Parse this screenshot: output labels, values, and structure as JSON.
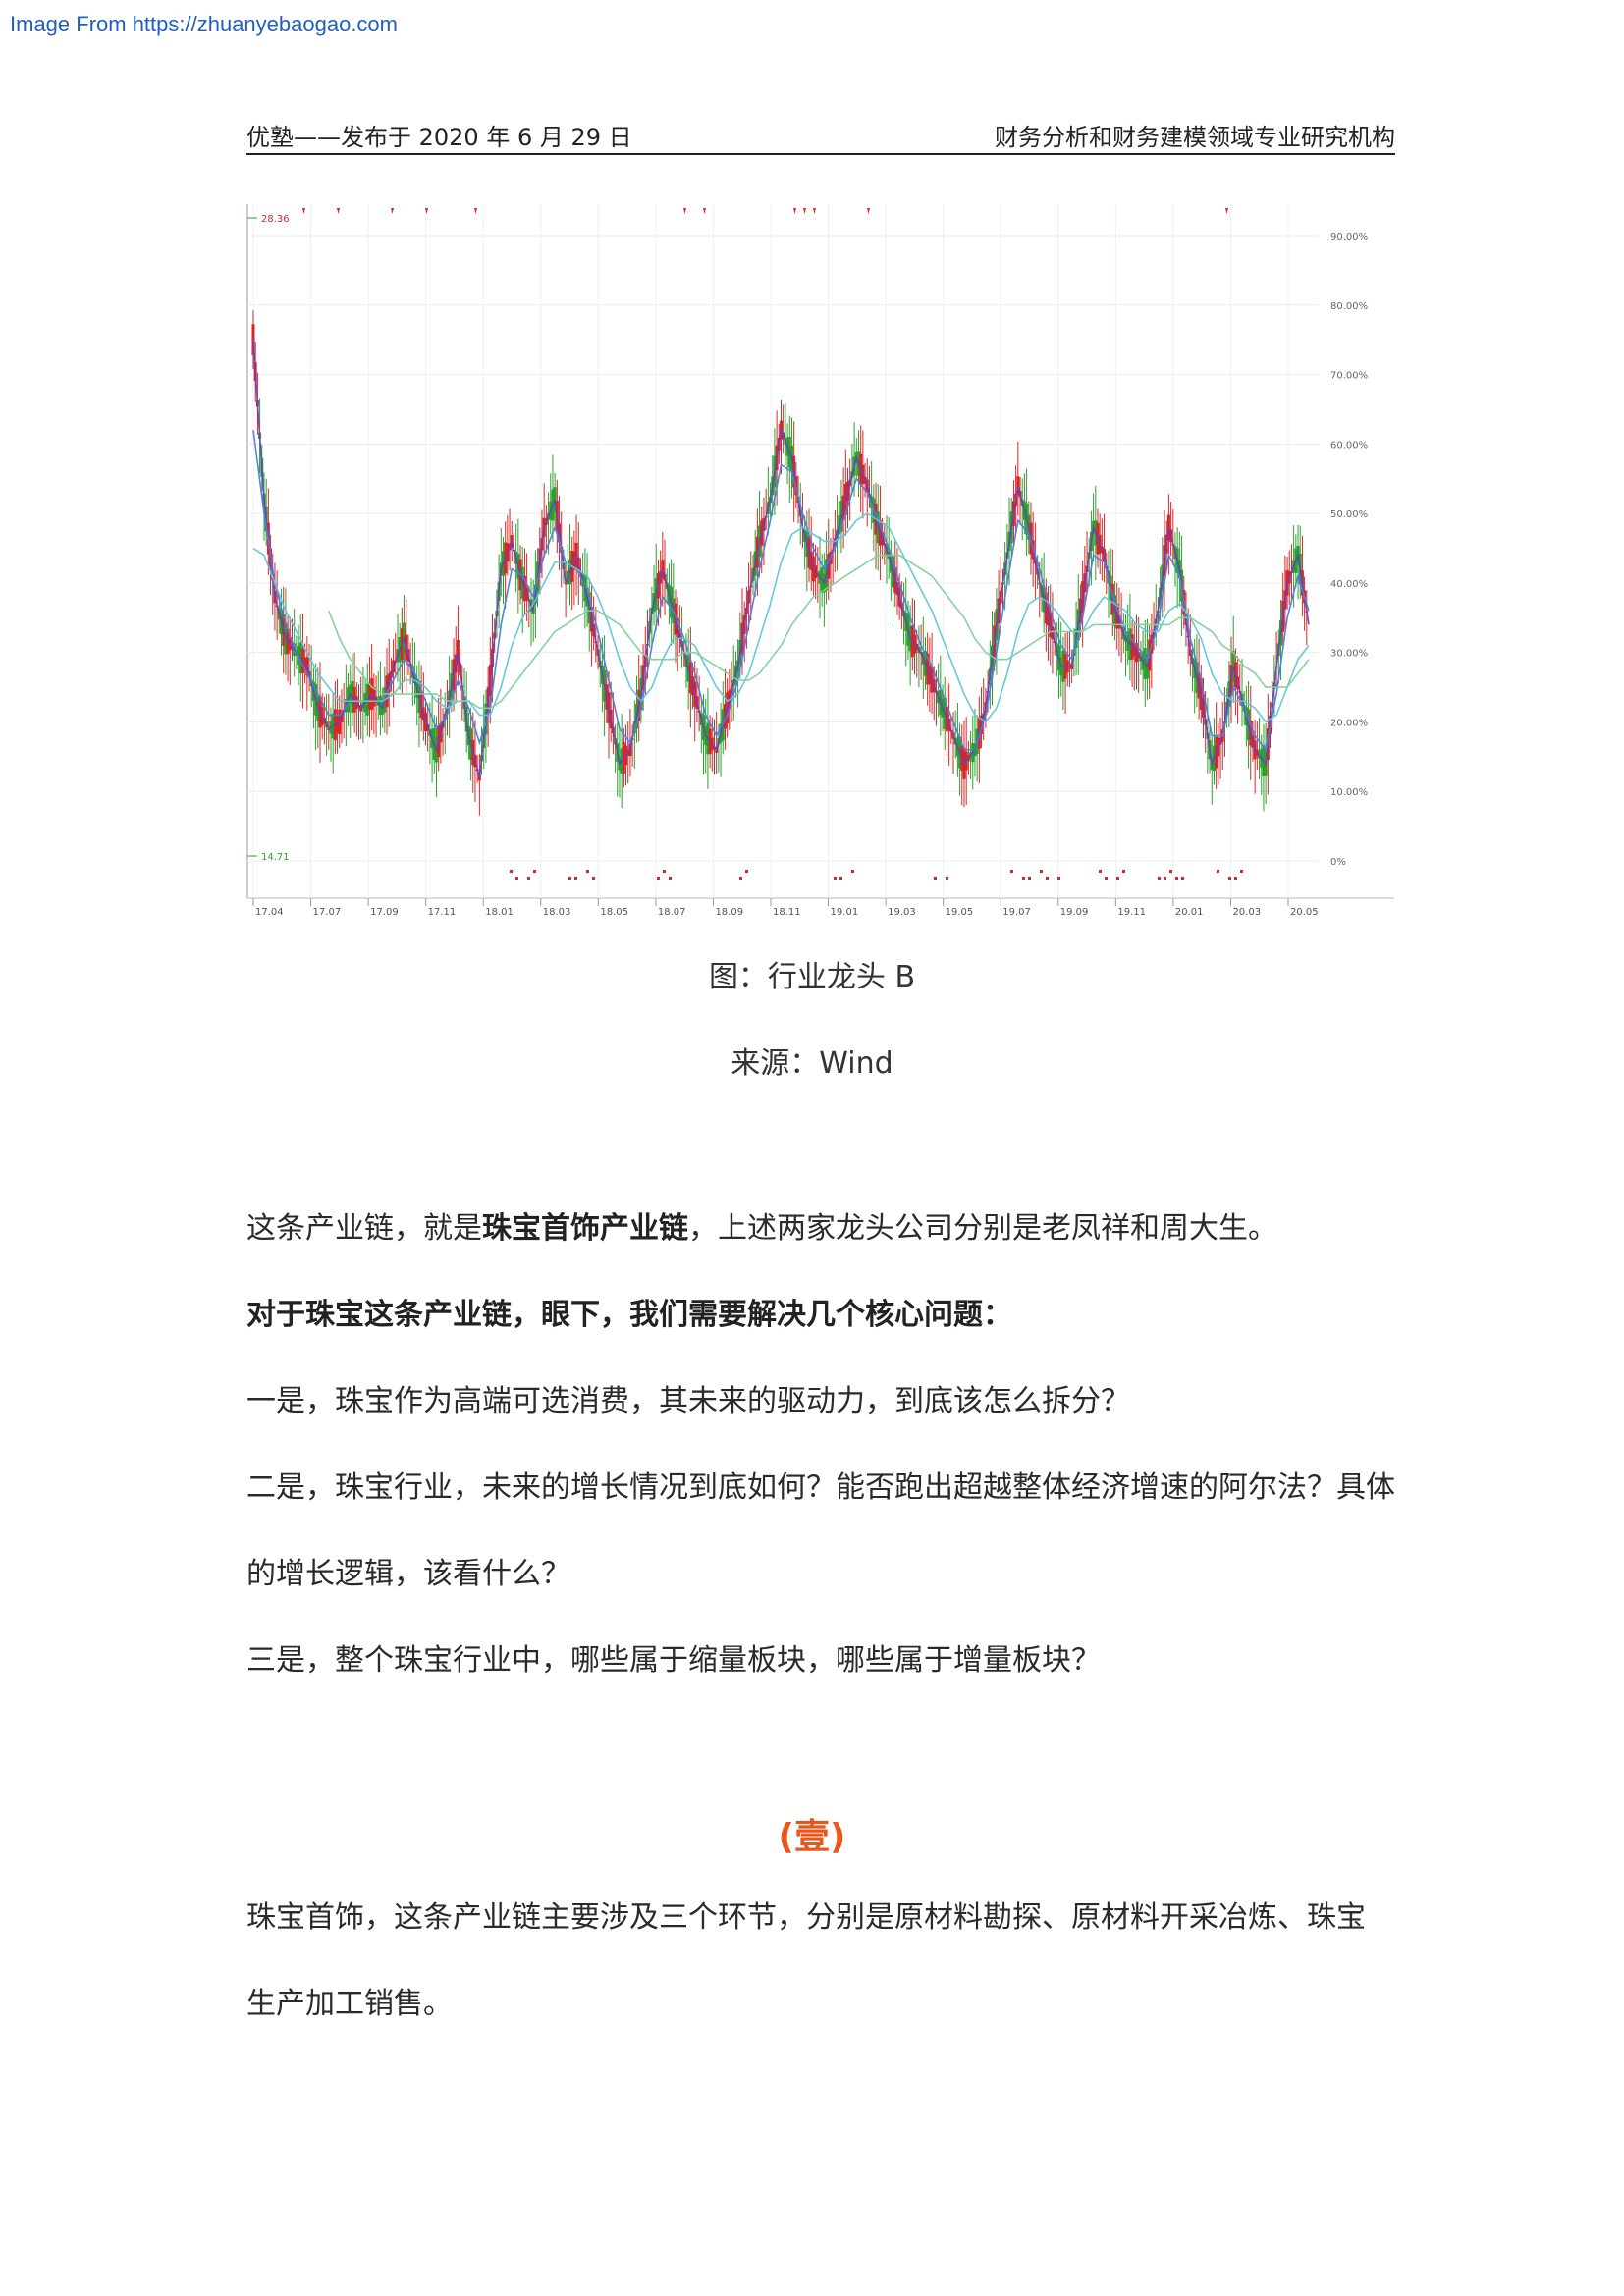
{
  "watermark": "Image From https://zhuanyebaogao.com",
  "header": {
    "left": "优塾——发布于 2020 年 6 月 29 日",
    "right": "财务分析和财务建模领域专业研究机构"
  },
  "chart_data": {
    "type": "line",
    "title": "",
    "xlabel": "",
    "ylabel": "",
    "x_ticks": [
      "17.04",
      "17.07",
      "17.09",
      "17.11",
      "18.01",
      "18.03",
      "18.05",
      "18.07",
      "18.09",
      "18.11",
      "19.01",
      "19.03",
      "19.05",
      "19.07",
      "19.09",
      "19.11",
      "20.01",
      "20.03",
      "20.05"
    ],
    "y_ticks": [
      "0%",
      "10.00%",
      "20.00%",
      "30.00%",
      "40.00%",
      "50.00%",
      "60.00%",
      "70.00%",
      "80.00%",
      "90.00%"
    ],
    "ylim": [
      0,
      95
    ],
    "annotations": {
      "max_label": "28.36",
      "min_label": "14.71"
    },
    "grid": true,
    "series": [
      {
        "values": [
          75,
          52,
          38,
          32,
          30,
          28,
          22,
          19,
          20,
          24,
          22,
          24,
          22,
          28,
          32,
          26,
          20,
          16,
          22,
          30,
          18,
          12,
          26,
          42,
          46,
          40,
          36,
          48,
          52,
          40,
          44,
          38,
          30,
          22,
          14,
          16,
          24,
          36,
          42,
          36,
          30,
          24,
          18,
          16,
          22,
          28,
          38,
          46,
          52,
          62,
          58,
          48,
          42,
          40,
          46,
          52,
          58,
          54,
          48,
          44,
          38,
          32,
          30,
          26,
          22,
          18,
          14,
          16,
          22,
          34,
          44,
          54,
          48,
          40,
          34,
          28,
          28,
          38,
          48,
          44,
          36,
          32,
          30,
          28,
          36,
          48,
          42,
          30,
          24,
          14,
          18,
          28,
          22,
          16,
          14,
          28,
          40,
          44,
          34
        ]
      },
      {
        "values": [
          62,
          50,
          40,
          34,
          30,
          27,
          24,
          21,
          21,
          23,
          23,
          23,
          23,
          26,
          29,
          27,
          23,
          19,
          21,
          26,
          22,
          17,
          22,
          34,
          42,
          41,
          38,
          44,
          48,
          43,
          42,
          39,
          33,
          26,
          19,
          17,
          22,
          31,
          38,
          36,
          32,
          27,
          21,
          18,
          21,
          26,
          34,
          42,
          49,
          57,
          56,
          50,
          45,
          42,
          45,
          50,
          55,
          53,
          49,
          45,
          40,
          35,
          31,
          28,
          24,
          20,
          16,
          16,
          21,
          30,
          40,
          49,
          47,
          42,
          36,
          31,
          29,
          35,
          44,
          43,
          37,
          33,
          31,
          29,
          34,
          44,
          41,
          32,
          26,
          18,
          18,
          25,
          22,
          18,
          16,
          24,
          35,
          41,
          36
        ]
      },
      {
        "values": [
          45,
          44,
          40,
          36,
          33,
          30,
          27,
          25,
          23,
          23,
          23,
          23,
          23,
          24,
          26,
          26,
          25,
          23,
          22,
          23,
          23,
          21,
          21,
          25,
          31,
          35,
          37,
          40,
          43,
          43,
          42,
          41,
          38,
          34,
          29,
          25,
          23,
          25,
          29,
          32,
          32,
          31,
          28,
          25,
          23,
          24,
          27,
          32,
          37,
          43,
          47,
          48,
          47,
          46,
          46,
          47,
          49,
          50,
          49,
          48,
          45,
          42,
          39,
          36,
          32,
          28,
          24,
          21,
          20,
          22,
          27,
          33,
          37,
          38,
          37,
          35,
          33,
          33,
          36,
          38,
          37,
          36,
          34,
          33,
          33,
          36,
          37,
          35,
          32,
          27,
          24,
          23,
          23,
          22,
          20,
          21,
          25,
          29,
          31
        ]
      },
      {
        "values": [
          null,
          null,
          null,
          null,
          null,
          null,
          null,
          36,
          32,
          29,
          27,
          25,
          24,
          24,
          24,
          24,
          24,
          24,
          23,
          23,
          23,
          22,
          22,
          23,
          25,
          27,
          29,
          31,
          33,
          34,
          35,
          36,
          36,
          35,
          34,
          32,
          30,
          29,
          29,
          29,
          30,
          30,
          29,
          28,
          27,
          26,
          26,
          27,
          29,
          31,
          34,
          36,
          38,
          39,
          40,
          41,
          42,
          43,
          44,
          44,
          44,
          43,
          42,
          41,
          39,
          37,
          35,
          32,
          30,
          29,
          29,
          30,
          31,
          32,
          33,
          33,
          33,
          33,
          34,
          34,
          34,
          34,
          34,
          34,
          34,
          34,
          35,
          35,
          34,
          33,
          31,
          30,
          28,
          27,
          25,
          25,
          25,
          27,
          29
        ]
      }
    ]
  },
  "captions": {
    "figure": "图：行业龙头 B",
    "source": "来源：Wind"
  },
  "paragraphs": {
    "p1_a": "这条产业链，就是",
    "p1_b": "珠宝首饰产业链",
    "p1_c": "，上述两家龙头公司分别是老凤祥和周大生。",
    "p2": "对于珠宝这条产业链，眼下，我们需要解决几个核心问题：",
    "p3": "一是，珠宝作为高端可选消费，其未来的驱动力，到底该怎么拆分？",
    "p4_line1": "二是，珠宝行业，未来的增长情况到底如何？能否跑出超越整体经济增速的阿尔法？具体",
    "p4_line2": "的增长逻辑，该看什么？",
    "p5": "三是，整个珠宝行业中，哪些属于缩量板块，哪些属于增量板块？",
    "section": "(壹)",
    "p6_line1": "珠宝首饰，这条产业链主要涉及三个环节，分别是原材料勘探、原材料开采冶炼、珠宝",
    "p6_line2": "生产加工销售。"
  },
  "colors": {
    "accent": "#e8571c",
    "up": "#d62728",
    "down": "#2ca02c",
    "ma1": "#6a3fc0",
    "ma2": "#4a7de0",
    "ma3": "#5fc6d8",
    "ma4": "#7fd09a"
  }
}
